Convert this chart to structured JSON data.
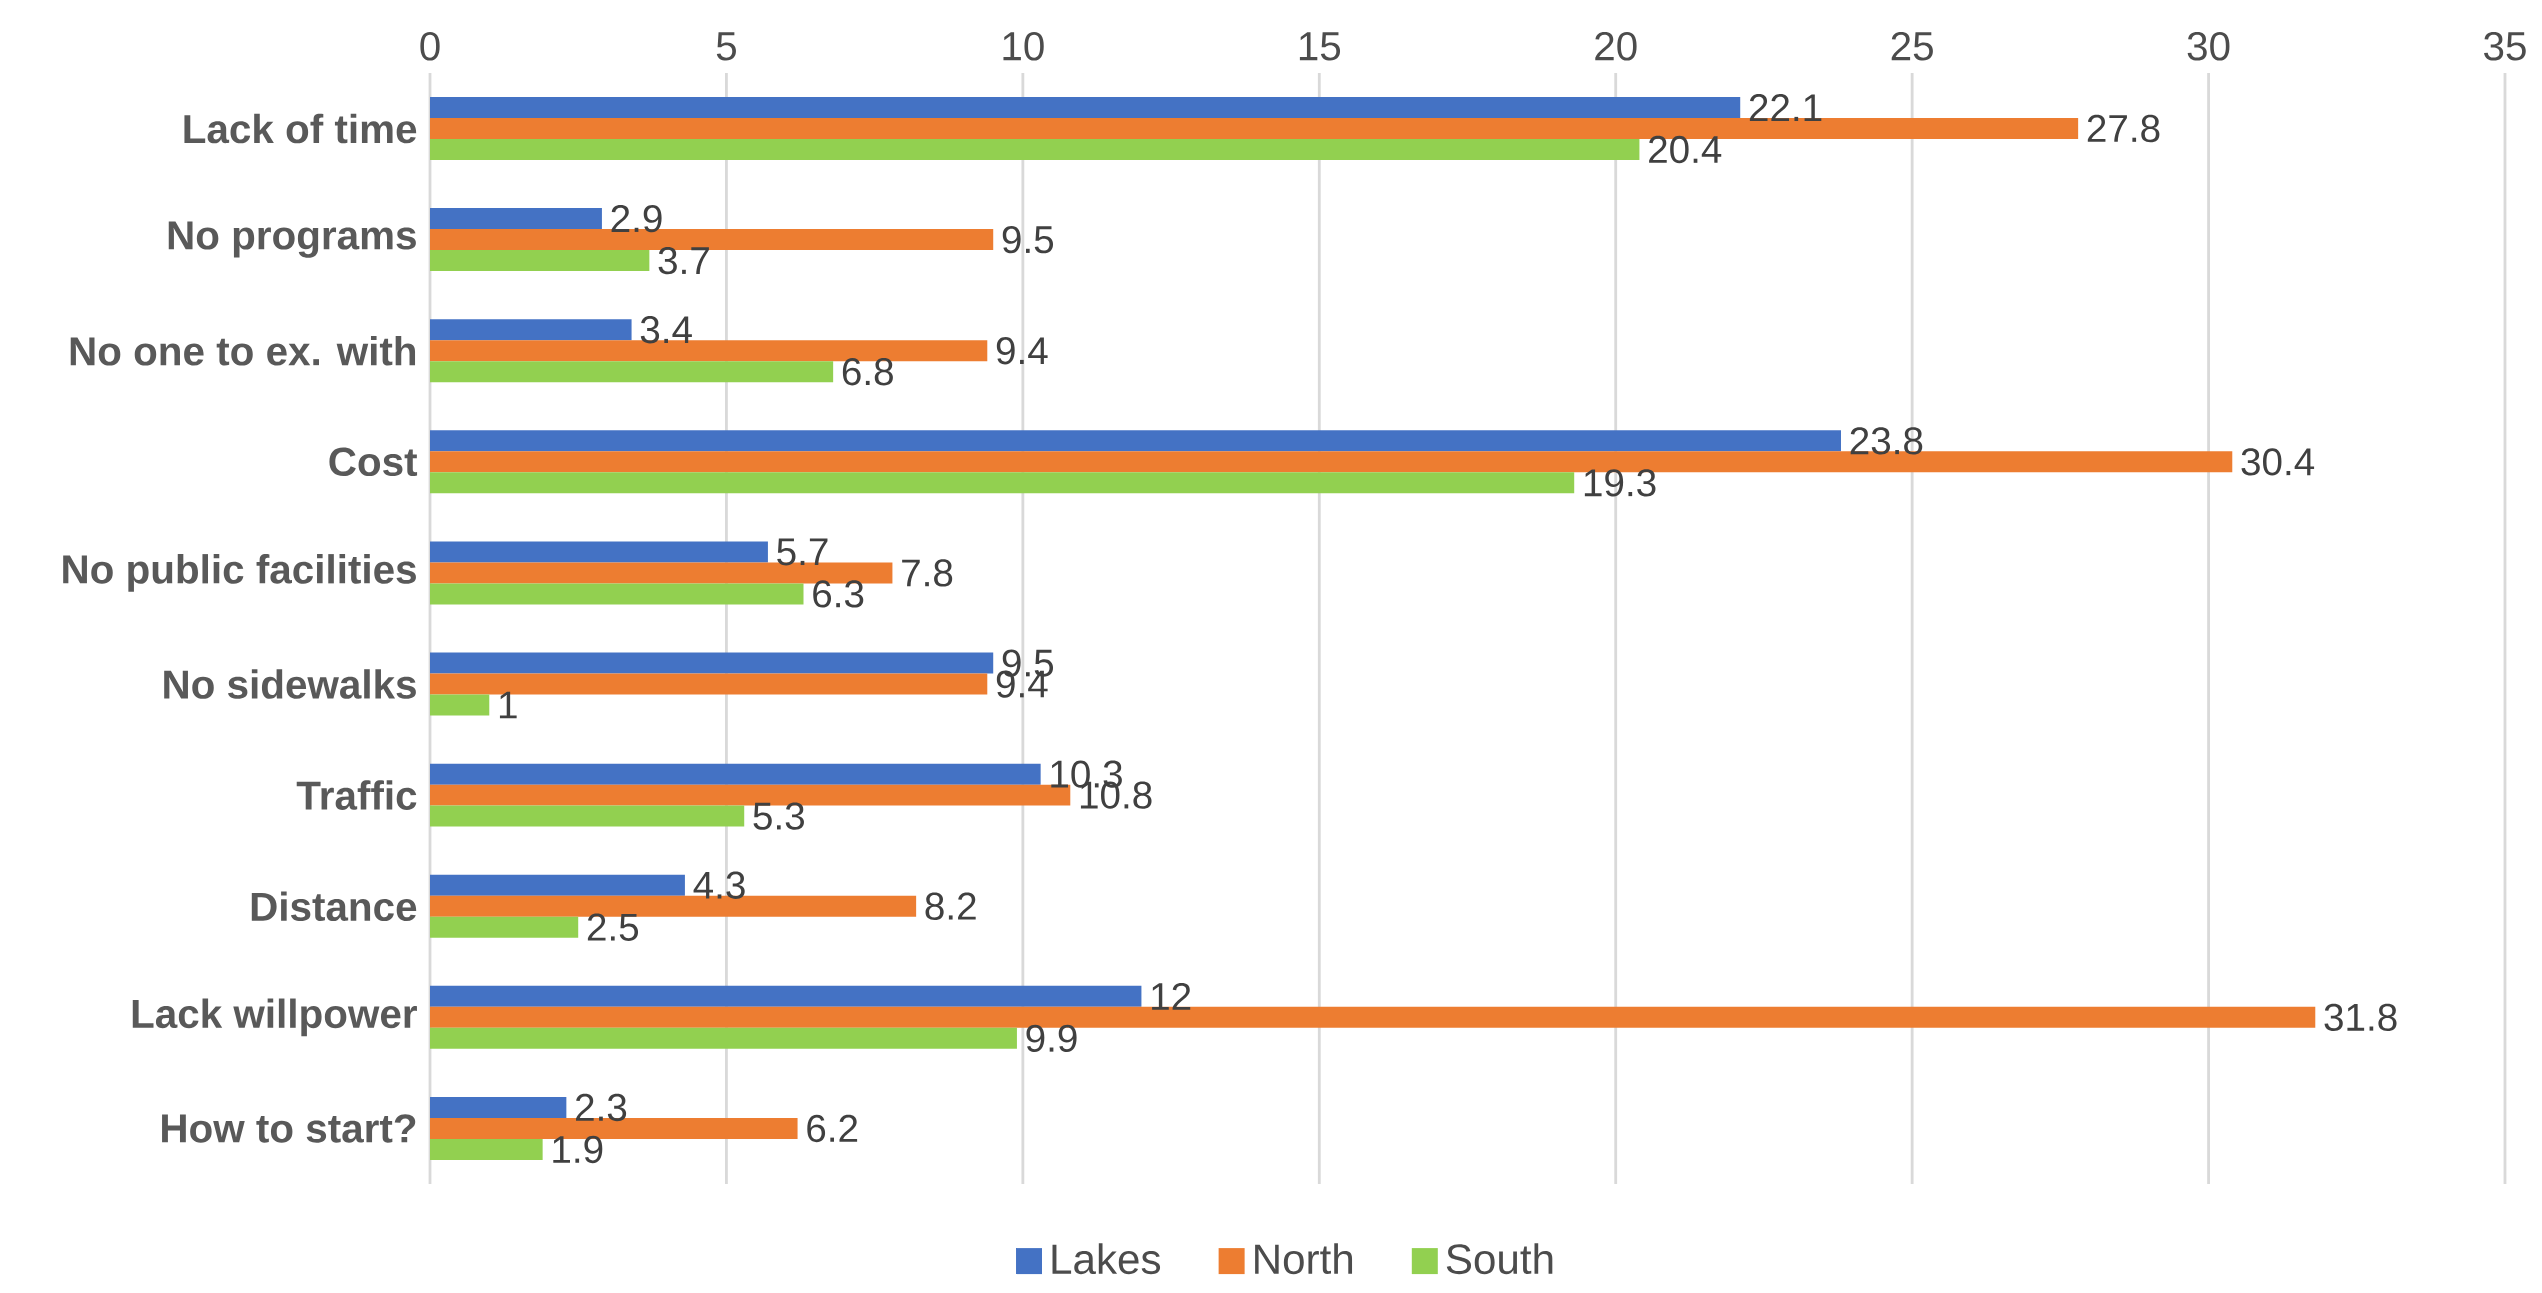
{
  "chart_data": {
    "type": "bar",
    "orientation": "horizontal",
    "categories": [
      "Lack of time",
      "No programs",
      "No one to ex. with",
      "Cost",
      "No public facilities",
      "No sidewalks",
      "Traffic",
      "Distance",
      "Lack willpower",
      "How to start?"
    ],
    "series": [
      {
        "name": "Lakes",
        "color": "#4472c4",
        "values": [
          22.1,
          2.9,
          3.4,
          23.8,
          5.7,
          9.5,
          10.3,
          4.3,
          12,
          2.3
        ]
      },
      {
        "name": "North",
        "color": "#ed7d31",
        "values": [
          27.8,
          9.5,
          9.4,
          30.4,
          7.8,
          9.4,
          10.8,
          8.2,
          31.8,
          6.2
        ]
      },
      {
        "name": "South",
        "color": "#92d050",
        "values": [
          20.4,
          3.7,
          6.8,
          19.3,
          6.3,
          1,
          5.3,
          2.5,
          9.9,
          1.9
        ]
      }
    ],
    "xlim": [
      0,
      35
    ],
    "xticks": [
      0,
      5,
      10,
      15,
      20,
      25,
      30,
      35
    ],
    "grid": "x",
    "legend": "bottom",
    "data_labels": true
  }
}
